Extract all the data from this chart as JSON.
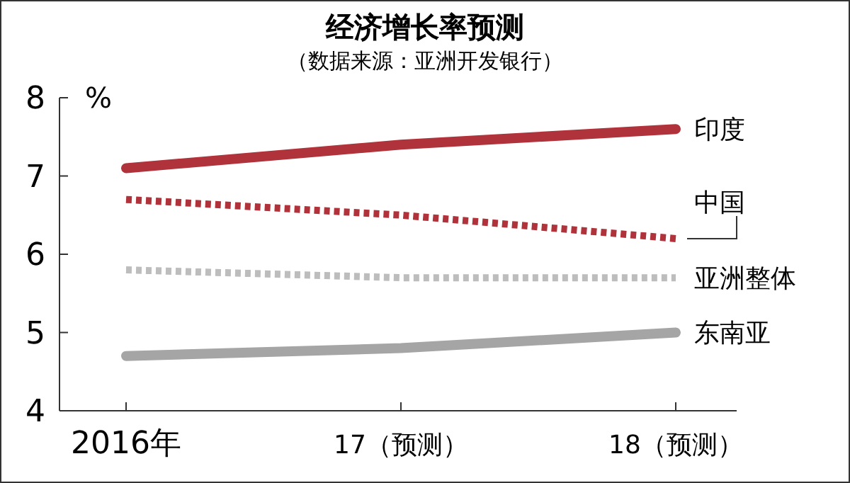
{
  "chart_data": {
    "type": "line",
    "title": "经济增长率预测",
    "subtitle": "（数据来源：亚洲开发银行）",
    "ylabel": "%",
    "categories": [
      "2016年",
      "17（预测）",
      "18（预测）"
    ],
    "series": [
      {
        "name": "印度",
        "color": "#b0323a",
        "values": [
          7.1,
          7.4,
          7.6
        ],
        "line_style": "solid"
      },
      {
        "name": "中国",
        "color": "#b0323a",
        "values": [
          6.7,
          6.5,
          6.2
        ],
        "line_style": "dotted"
      },
      {
        "name": "亚洲整体",
        "color": "#bdbdbd",
        "values": [
          5.8,
          5.7,
          5.7
        ],
        "line_style": "dotted"
      },
      {
        "name": "东南亚",
        "color": "#a5a5a5",
        "values": [
          4.7,
          4.8,
          5.0
        ],
        "line_style": "solid"
      }
    ],
    "ylim": [
      4,
      8
    ],
    "yticks": [
      4,
      5,
      6,
      7,
      8
    ],
    "grid": false,
    "marker": "none"
  }
}
